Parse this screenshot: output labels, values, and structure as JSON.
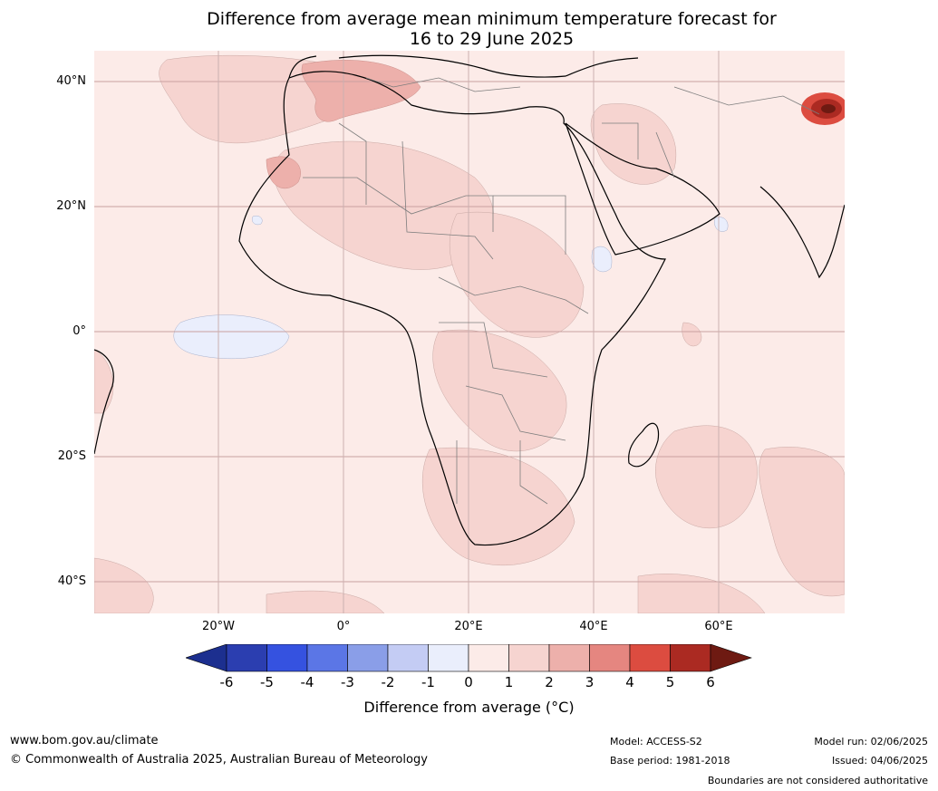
{
  "title_line1": "Difference from average mean minimum temperature forecast for",
  "title_line2": "16 to 29 June 2025",
  "lat_labels": [
    "40°N",
    "20°N",
    "0°",
    "20°S",
    "40°S"
  ],
  "lon_labels": [
    "20°W",
    "0°",
    "20°E",
    "40°E",
    "60°E"
  ],
  "colorbar": {
    "title": "Difference from average (°C)",
    "ticks": [
      "-6",
      "-5",
      "-4",
      "-3",
      "-2",
      "-1",
      "0",
      "1",
      "2",
      "3",
      "4",
      "5",
      "6"
    ],
    "colors": [
      "#1c2f8f",
      "#2b3eb0",
      "#3552e0",
      "#5b76e6",
      "#8a9ee8",
      "#c4ccf4",
      "#eaeefc",
      "#fcebe8",
      "#f6d4d0",
      "#edb0ab",
      "#e58680",
      "#dc4c40",
      "#ab2a22",
      "#6e1a12"
    ]
  },
  "footer": {
    "website": "www.bom.gov.au/climate",
    "copyright": "© Commonwealth of Australia 2025, Australian Bureau of Meteorology",
    "model": "Model: ACCESS-S2",
    "base_period": "Base period: 1981-2018",
    "model_run": "Model run: 02/06/2025",
    "issued": "Issued: 04/06/2025",
    "disclaimer": "Boundaries are not considered authoritative"
  }
}
